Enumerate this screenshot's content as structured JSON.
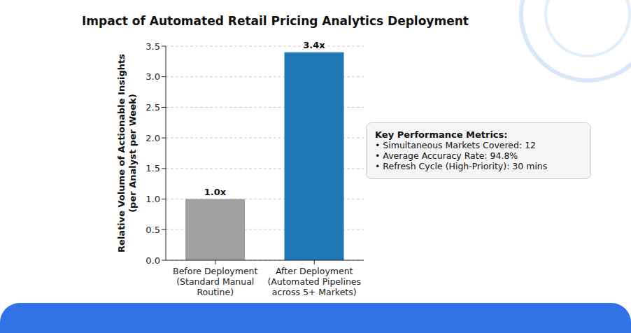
{
  "chart_data": {
    "type": "bar",
    "title": "Impact of Automated Retail Pricing Analytics Deployment",
    "y_label": "Relative Volume of Actionable Insights\n(per Analyst per Week)",
    "categories": [
      "Before Deployment\n(Standard Manual Routine)",
      "After Deployment\n(Automated Pipelines across 5+ Markets)"
    ],
    "values": [
      1.0,
      3.4
    ],
    "value_labels": [
      "1.0x",
      "3.4x"
    ],
    "data_labels": true,
    "colors": [
      "#a0a0a0",
      "#1f77b4"
    ],
    "ylim": [
      0,
      3.5
    ],
    "yticks": [
      {
        "value": 0,
        "label": "0.0"
      },
      {
        "value": 0.5,
        "label": "0.5"
      },
      {
        "value": 1,
        "label": "1.0"
      },
      {
        "value": 1.5,
        "label": "1.5"
      },
      {
        "value": 2,
        "label": "2.0"
      },
      {
        "value": 2.5,
        "label": "2.5"
      },
      {
        "value": 3,
        "label": "3.0"
      },
      {
        "value": 3.5,
        "label": "3.5"
      }
    ],
    "grid": true,
    "annotation": {
      "title": "Key Performance Metrics:",
      "lines": [
        "• Simultaneous Markets Covered: 12",
        "• Average Accuracy Rate: 94.8%",
        "• Refresh Cycle (High-Priority): 30 mins"
      ]
    }
  }
}
